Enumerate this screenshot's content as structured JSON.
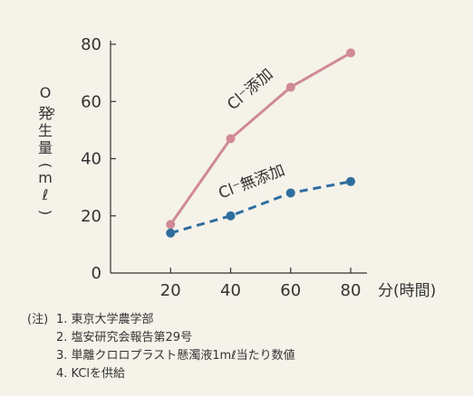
{
  "chart_data": {
    "type": "line",
    "x": [
      20,
      40,
      60,
      80
    ],
    "xlim": [
      0,
      80
    ],
    "ylim": [
      0,
      80
    ],
    "x_ticks": [
      "20",
      "40",
      "60",
      "80"
    ],
    "y_ticks": [
      "0",
      "20",
      "40",
      "60",
      "80"
    ],
    "xlabel": "分(時間)",
    "ylabel": "O2発生量(mℓ)",
    "grid": false,
    "series": [
      {
        "name": "Cl⁻添加",
        "values": [
          17,
          47,
          65,
          77
        ],
        "color": "#d08a96",
        "style": "solid"
      },
      {
        "name": "Cl⁻無添加",
        "values": [
          14,
          20,
          28,
          32
        ],
        "color": "#2e6e9e",
        "style": "dashed"
      }
    ]
  },
  "notes": {
    "prefix": "(注)",
    "items": [
      "1. 東京大学農学部",
      "2. 塩安研究会報告第29号",
      "3. 単離クロロプラスト懸濁液1mℓ当たり数値",
      "4. KClを供給"
    ]
  }
}
